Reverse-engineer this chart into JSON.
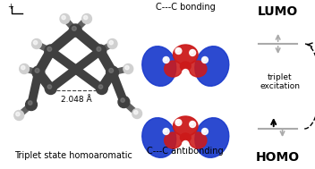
{
  "left_label": "Triplet state homoaromatic",
  "distance_label": "2.048 Å",
  "top_orbital_label": "C---C bonding",
  "bottom_orbital_label": "C---C antibonding",
  "lumo_label": "LUMO",
  "homo_label": "HOMO",
  "triplet_label": "triplet\nexcitation",
  "bg_color": "#ffffff",
  "text_color": "#000000",
  "bar_color": "#aaaaaa",
  "bond_color": "#404040",
  "h_color": "#d0d0d0",
  "blue_lobe": "#1a3acc",
  "red_lobe": "#cc1a1a"
}
